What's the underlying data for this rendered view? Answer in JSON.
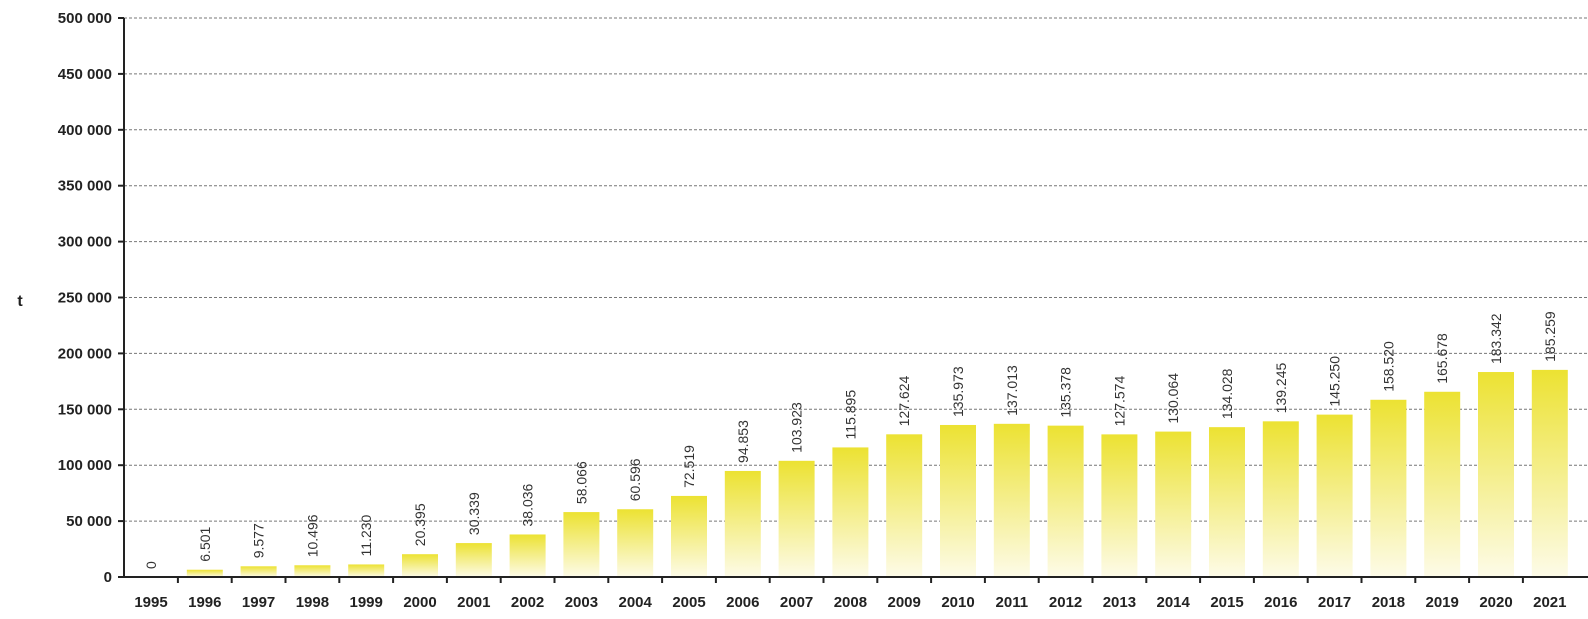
{
  "chart_data": {
    "type": "bar",
    "ylabel": "t",
    "xlabel": "",
    "ylim": [
      0,
      500000
    ],
    "y_ticks": [
      0,
      50000,
      100000,
      150000,
      200000,
      250000,
      300000,
      350000,
      400000,
      450000,
      500000
    ],
    "y_tick_labels": [
      "0",
      "50 000",
      "100 000",
      "150 000",
      "200 000",
      "250 000",
      "300 000",
      "350 000",
      "400 000",
      "450 000",
      "500 000"
    ],
    "grid": true,
    "categories": [
      "1995",
      "1996",
      "1997",
      "1998",
      "1999",
      "2000",
      "2001",
      "2002",
      "2003",
      "2004",
      "2005",
      "2006",
      "2007",
      "2008",
      "2009",
      "2010",
      "2011",
      "2012",
      "2013",
      "2014",
      "2015",
      "2016",
      "2017",
      "2018",
      "2019",
      "2020",
      "2021"
    ],
    "values": [
      0,
      6501,
      9577,
      10496,
      11230,
      20395,
      30339,
      38036,
      58066,
      60596,
      72519,
      94853,
      103923,
      115895,
      127624,
      135973,
      137013,
      135378,
      127574,
      130064,
      134028,
      139245,
      145250,
      158520,
      165678,
      183342,
      185259
    ],
    "data_labels": [
      "0",
      "6.501",
      "9.577",
      "10.496",
      "11.230",
      "20.395",
      "30.339",
      "38.036",
      "58.066",
      "60.596",
      "72.519",
      "94.853",
      "103.923",
      "115.895",
      "127.624",
      "135.973",
      "137.013",
      "135.378",
      "127.574",
      "130.064",
      "134.028",
      "139.245",
      "145.250",
      "158.520",
      "165.678",
      "183.342",
      "185.259"
    ],
    "bar_color": "#f0e040"
  }
}
